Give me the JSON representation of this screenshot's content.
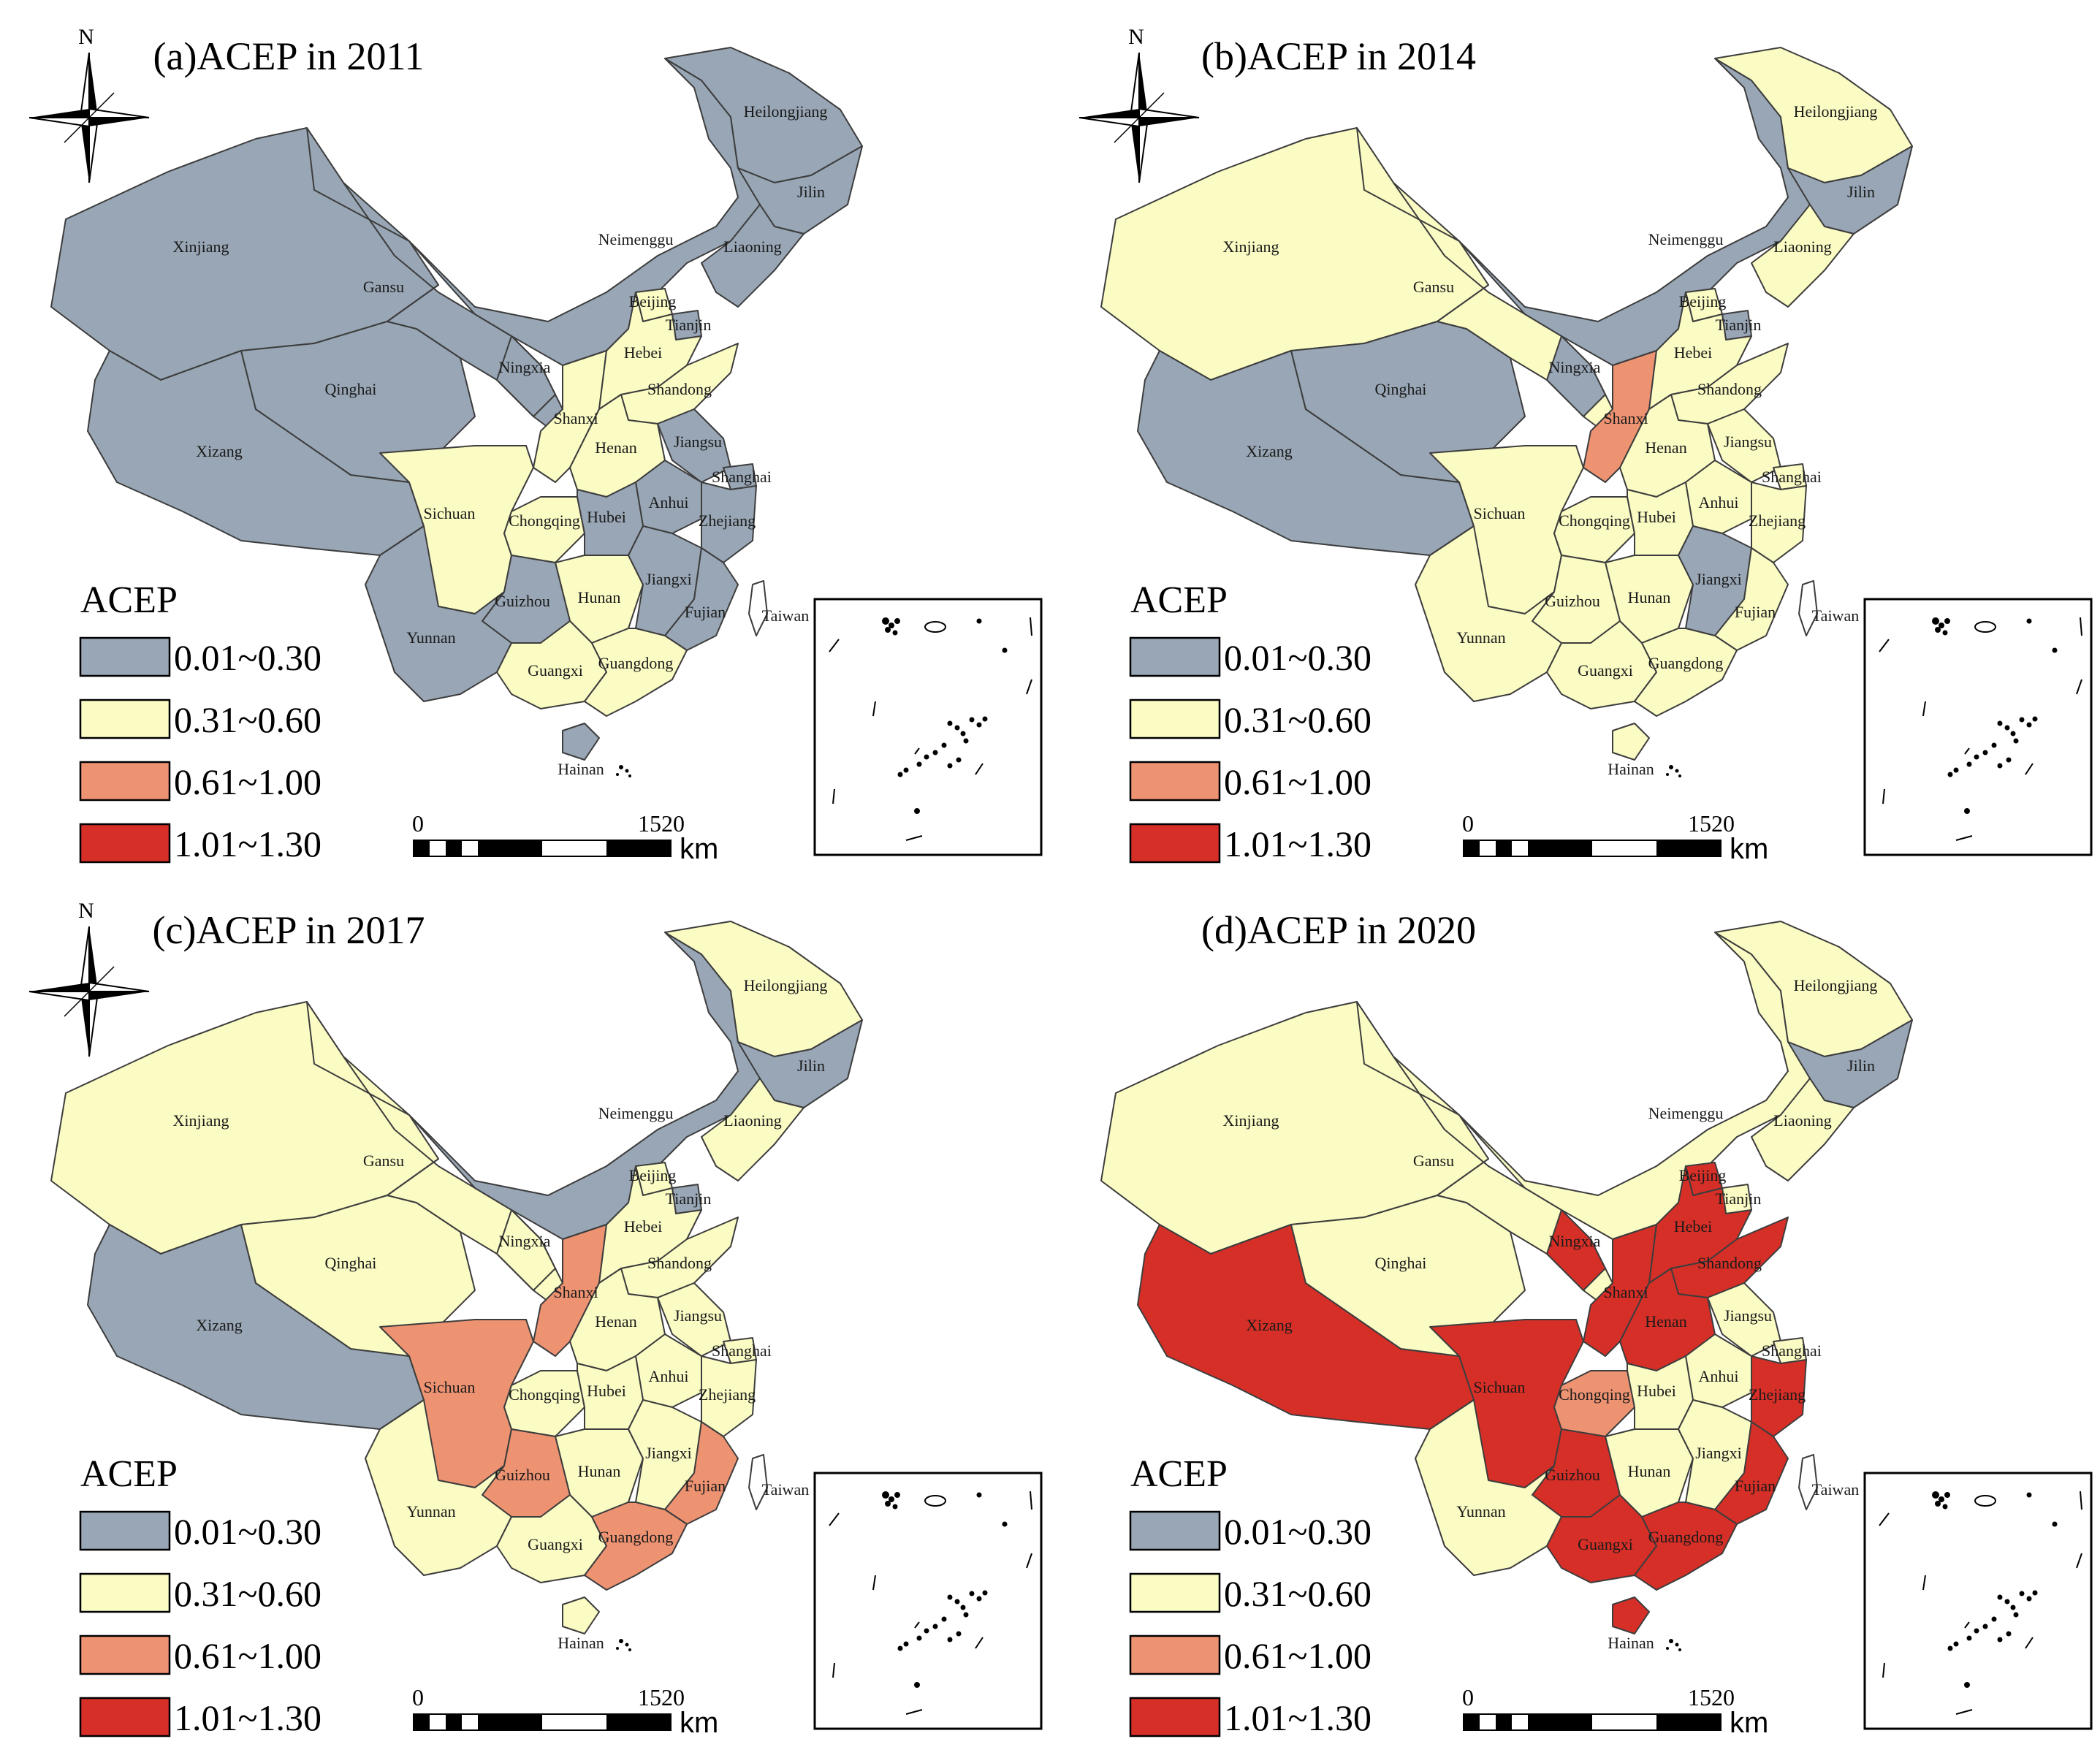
{
  "figure": {
    "compass_letter": "N",
    "legend_title": "ACEP",
    "scale_labels": [
      "0",
      "1520"
    ],
    "scale_unit": "km"
  },
  "classes": [
    {
      "label": "0.01~0.30",
      "color": "#98a6b5"
    },
    {
      "label": "0.31~0.60",
      "color": "#fbfbc4"
    },
    {
      "label": "0.61~1.00",
      "color": "#ee9372"
    },
    {
      "label": "1.01~1.30",
      "color": "#d62f27"
    }
  ],
  "provinces": [
    "Heilongjiang",
    "Jilin",
    "Liaoning",
    "Neimenggu",
    "Xinjiang",
    "Xizang",
    "Qinghai",
    "Gansu",
    "Ningxia",
    "Shanxi",
    "Beijing",
    "Tianjin",
    "Hebei",
    "Shandong",
    "Henan",
    "Jiangsu",
    "Anhui",
    "Shanghai",
    "Zhejiang",
    "Sichuan",
    "Chongqing",
    "Hubei",
    "Hunan",
    "Jiangxi",
    "Fujian",
    "Guizhou",
    "Yunnan",
    "Guangxi",
    "Guangdong",
    "Hainan",
    "Taiwan"
  ],
  "panels": [
    {
      "title": "(a)ACEP in 2011",
      "classes": {
        "Heilongjiang": 1,
        "Jilin": 1,
        "Liaoning": 1,
        "Neimenggu": 1,
        "Xinjiang": 1,
        "Xizang": 1,
        "Qinghai": 1,
        "Gansu": 1,
        "Ningxia": 1,
        "Shanxi": 2,
        "Beijing": 2,
        "Tianjin": 1,
        "Hebei": 2,
        "Shandong": 2,
        "Henan": 2,
        "Jiangsu": 1,
        "Anhui": 1,
        "Shanghai": 1,
        "Zhejiang": 1,
        "Sichuan": 2,
        "Chongqing": 2,
        "Hubei": 1,
        "Hunan": 2,
        "Jiangxi": 1,
        "Fujian": 1,
        "Guizhou": 1,
        "Yunnan": 1,
        "Guangxi": 2,
        "Guangdong": 2,
        "Hainan": 1,
        "Taiwan": 0
      }
    },
    {
      "title": "(b)ACEP in 2014",
      "classes": {
        "Heilongjiang": 2,
        "Jilin": 1,
        "Liaoning": 2,
        "Neimenggu": 1,
        "Xinjiang": 2,
        "Xizang": 1,
        "Qinghai": 1,
        "Gansu": 2,
        "Ningxia": 1,
        "Shanxi": 3,
        "Beijing": 2,
        "Tianjin": 1,
        "Hebei": 2,
        "Shandong": 2,
        "Henan": 2,
        "Jiangsu": 2,
        "Anhui": 2,
        "Shanghai": 2,
        "Zhejiang": 2,
        "Sichuan": 2,
        "Chongqing": 2,
        "Hubei": 2,
        "Hunan": 2,
        "Jiangxi": 1,
        "Fujian": 2,
        "Guizhou": 2,
        "Yunnan": 2,
        "Guangxi": 2,
        "Guangdong": 2,
        "Hainan": 2,
        "Taiwan": 0
      }
    },
    {
      "title": "(c)ACEP in 2017",
      "classes": {
        "Heilongjiang": 2,
        "Jilin": 1,
        "Liaoning": 2,
        "Neimenggu": 1,
        "Xinjiang": 2,
        "Xizang": 1,
        "Qinghai": 2,
        "Gansu": 2,
        "Ningxia": 2,
        "Shanxi": 3,
        "Beijing": 2,
        "Tianjin": 1,
        "Hebei": 2,
        "Shandong": 2,
        "Henan": 2,
        "Jiangsu": 2,
        "Anhui": 2,
        "Shanghai": 2,
        "Zhejiang": 2,
        "Sichuan": 3,
        "Chongqing": 2,
        "Hubei": 2,
        "Hunan": 2,
        "Jiangxi": 2,
        "Fujian": 3,
        "Guizhou": 3,
        "Yunnan": 2,
        "Guangxi": 2,
        "Guangdong": 3,
        "Hainan": 2,
        "Taiwan": 0
      }
    },
    {
      "title": "(d)ACEP in 2020",
      "classes": {
        "Heilongjiang": 2,
        "Jilin": 1,
        "Liaoning": 2,
        "Neimenggu": 2,
        "Xinjiang": 2,
        "Xizang": 4,
        "Qinghai": 2,
        "Gansu": 2,
        "Ningxia": 4,
        "Shanxi": 4,
        "Beijing": 4,
        "Tianjin": 2,
        "Hebei": 4,
        "Shandong": 4,
        "Henan": 4,
        "Jiangsu": 2,
        "Anhui": 2,
        "Shanghai": 2,
        "Zhejiang": 4,
        "Sichuan": 4,
        "Chongqing": 3,
        "Hubei": 2,
        "Hunan": 2,
        "Jiangxi": 2,
        "Fujian": 4,
        "Guizhou": 4,
        "Yunnan": 2,
        "Guangxi": 4,
        "Guangdong": 4,
        "Hainan": 4,
        "Taiwan": 0
      }
    }
  ]
}
